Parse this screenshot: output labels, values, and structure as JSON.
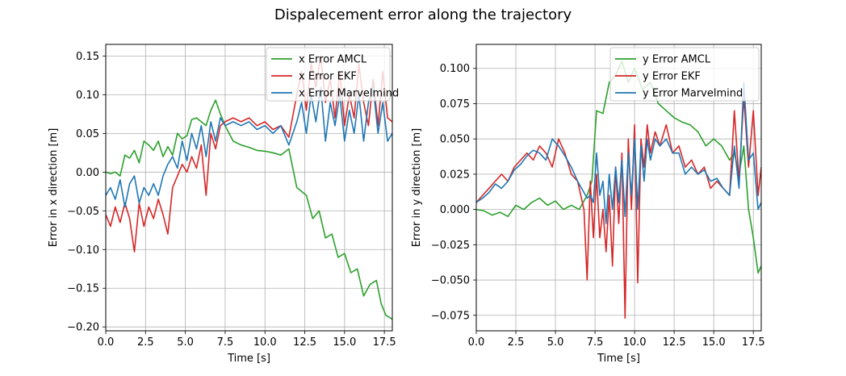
{
  "figure_title": "Dispalecement error along the trajectory",
  "colors": {
    "green": "#2ca02c",
    "red": "#d62728",
    "blue": "#1f77b4",
    "grid": "#b0b0b0"
  },
  "chart_data": [
    {
      "type": "line",
      "xlabel": "Time [s]",
      "ylabel": "Error in x direction [m]",
      "xlim": [
        0,
        18
      ],
      "ylim": [
        -0.205,
        0.165
      ],
      "xticks": [
        0,
        2.5,
        5,
        7.5,
        10,
        12.5,
        15,
        17.5
      ],
      "xtick_labels": [
        "0.0",
        "2.5",
        "5.0",
        "7.5",
        "10.0",
        "12.5",
        "15.0",
        "17.5"
      ],
      "yticks": [
        -0.2,
        -0.15,
        -0.1,
        -0.05,
        0,
        0.05,
        0.1,
        0.15
      ],
      "ytick_labels": [
        "−0.20",
        "−0.15",
        "−0.10",
        "−0.05",
        "0.00",
        "0.05",
        "0.10",
        "0.15"
      ],
      "grid": true,
      "legend_position": "top-right",
      "series": [
        {
          "name": "x Error AMCL",
          "color": "#2ca02c",
          "x": [
            0,
            0.3,
            0.6,
            0.9,
            1.2,
            1.5,
            1.8,
            2.1,
            2.4,
            2.7,
            3.0,
            3.3,
            3.6,
            3.9,
            4.2,
            4.5,
            4.8,
            5.1,
            5.4,
            5.7,
            6.0,
            6.3,
            6.6,
            6.9,
            7.2,
            7.5,
            8.0,
            8.5,
            9.0,
            9.5,
            10.0,
            10.5,
            11.0,
            11.5,
            12.0,
            12.3,
            12.6,
            13.0,
            13.4,
            13.8,
            14.2,
            14.6,
            15.0,
            15.4,
            15.8,
            16.2,
            16.6,
            17.0,
            17.3,
            17.6,
            18.0
          ],
          "y": [
            0.0,
            -0.002,
            0.0,
            -0.005,
            0.022,
            0.018,
            0.028,
            0.012,
            0.04,
            0.035,
            0.028,
            0.04,
            0.02,
            0.033,
            0.022,
            0.05,
            0.043,
            0.047,
            0.068,
            0.07,
            0.065,
            0.06,
            0.08,
            0.093,
            0.075,
            0.06,
            0.04,
            0.035,
            0.032,
            0.028,
            0.027,
            0.025,
            0.022,
            0.03,
            -0.02,
            -0.025,
            -0.03,
            -0.06,
            -0.05,
            -0.085,
            -0.08,
            -0.11,
            -0.105,
            -0.13,
            -0.125,
            -0.16,
            -0.145,
            -0.14,
            -0.17,
            -0.185,
            -0.19
          ]
        },
        {
          "name": "x Error EKF",
          "color": "#d62728",
          "x": [
            0,
            0.3,
            0.6,
            0.9,
            1.2,
            1.5,
            1.8,
            2.1,
            2.4,
            2.7,
            3.0,
            3.3,
            3.6,
            3.9,
            4.2,
            4.5,
            4.8,
            5.1,
            5.4,
            5.7,
            6.0,
            6.3,
            6.6,
            6.9,
            7.2,
            7.5,
            8.0,
            8.5,
            9.0,
            9.5,
            10.0,
            10.5,
            11.0,
            11.5,
            12.0,
            12.3,
            12.6,
            12.9,
            13.2,
            13.5,
            13.8,
            14.1,
            14.4,
            14.7,
            15.0,
            15.3,
            15.6,
            15.9,
            16.2,
            16.5,
            16.8,
            17.1,
            17.4,
            17.7,
            18.0
          ],
          "y": [
            -0.055,
            -0.07,
            -0.045,
            -0.065,
            -0.04,
            -0.06,
            -0.103,
            -0.04,
            -0.07,
            -0.045,
            -0.06,
            -0.035,
            -0.055,
            -0.08,
            -0.02,
            -0.005,
            0.01,
            0.0,
            0.02,
            0.005,
            0.035,
            -0.03,
            0.05,
            0.03,
            0.06,
            0.065,
            0.07,
            0.065,
            0.07,
            0.06,
            0.065,
            0.055,
            0.06,
            0.045,
            0.1,
            0.13,
            0.08,
            0.14,
            0.11,
            0.15,
            0.09,
            0.12,
            0.07,
            0.13,
            0.06,
            0.1,
            0.07,
            0.14,
            0.09,
            0.06,
            0.12,
            0.06,
            0.13,
            0.07,
            0.065
          ]
        },
        {
          "name": "x Error Marvelmind",
          "color": "#1f77b4",
          "x": [
            0,
            0.3,
            0.6,
            0.9,
            1.2,
            1.5,
            1.8,
            2.1,
            2.4,
            2.7,
            3.0,
            3.3,
            3.6,
            3.9,
            4.2,
            4.5,
            4.8,
            5.1,
            5.4,
            5.7,
            6.0,
            6.3,
            6.6,
            6.9,
            7.2,
            7.5,
            8.0,
            8.5,
            9.0,
            9.5,
            10.0,
            10.5,
            11.0,
            11.5,
            12.0,
            12.3,
            12.6,
            12.9,
            13.2,
            13.5,
            13.8,
            14.1,
            14.4,
            14.7,
            15.0,
            15.3,
            15.6,
            15.9,
            16.2,
            16.5,
            16.8,
            17.1,
            17.4,
            17.7,
            18.0
          ],
          "y": [
            -0.03,
            -0.02,
            -0.035,
            -0.01,
            -0.045,
            -0.015,
            -0.005,
            -0.04,
            -0.02,
            -0.03,
            -0.015,
            -0.03,
            -0.005,
            0.01,
            0.02,
            0.005,
            0.04,
            0.015,
            0.05,
            0.03,
            0.06,
            0.02,
            0.065,
            0.04,
            0.07,
            0.06,
            0.065,
            0.06,
            0.065,
            0.055,
            0.06,
            0.05,
            0.06,
            0.035,
            0.065,
            0.09,
            0.05,
            0.1,
            0.065,
            0.11,
            0.04,
            0.09,
            0.06,
            0.1,
            0.04,
            0.08,
            0.05,
            0.1,
            0.04,
            0.09,
            0.11,
            0.05,
            0.09,
            0.04,
            0.05
          ]
        }
      ]
    },
    {
      "type": "line",
      "xlabel": "Time [s]",
      "ylabel": "Error in y direction [m]",
      "xlim": [
        0,
        18
      ],
      "ylim": [
        -0.086,
        0.117
      ],
      "xticks": [
        0,
        2.5,
        5,
        7.5,
        10,
        12.5,
        15,
        17.5
      ],
      "xtick_labels": [
        "0.0",
        "2.5",
        "5.0",
        "7.5",
        "10.0",
        "12.5",
        "15.0",
        "17.5"
      ],
      "yticks": [
        -0.075,
        -0.05,
        -0.025,
        0,
        0.025,
        0.05,
        0.075,
        0.1
      ],
      "ytick_labels": [
        "−0.075",
        "−0.050",
        "−0.025",
        "0.000",
        "0.025",
        "0.050",
        "0.075",
        "0.100"
      ],
      "grid": true,
      "legend_position": "top-right",
      "series": [
        {
          "name": "y Error AMCL",
          "color": "#2ca02c",
          "x": [
            0,
            0.5,
            1.0,
            1.5,
            2.0,
            2.5,
            3.0,
            3.5,
            4.0,
            4.5,
            5.0,
            5.5,
            6.0,
            6.5,
            7.0,
            7.3,
            7.6,
            8.0,
            8.4,
            8.8,
            9.2,
            9.6,
            10.0,
            10.5,
            11.0,
            11.5,
            12.0,
            12.5,
            13.0,
            13.5,
            14.0,
            14.5,
            15.0,
            15.5,
            16.0,
            16.3,
            16.6,
            16.9,
            17.2,
            17.5,
            17.8,
            18.0
          ],
          "y": [
            0.0,
            -0.001,
            -0.004,
            -0.002,
            -0.005,
            0.003,
            0.0,
            0.005,
            0.008,
            0.003,
            0.006,
            0.0,
            0.003,
            0.0,
            0.01,
            0.02,
            0.07,
            0.068,
            0.09,
            0.095,
            0.105,
            0.09,
            0.1,
            0.085,
            0.09,
            0.075,
            0.07,
            0.065,
            0.062,
            0.06,
            0.055,
            0.045,
            0.05,
            0.045,
            0.035,
            0.04,
            0.025,
            0.045,
            0.0,
            -0.02,
            -0.045,
            -0.04
          ]
        },
        {
          "name": "y Error EKF",
          "color": "#d62728",
          "x": [
            0,
            0.4,
            0.8,
            1.2,
            1.6,
            2.0,
            2.4,
            2.8,
            3.2,
            3.6,
            4.0,
            4.4,
            4.8,
            5.2,
            5.6,
            6.0,
            6.4,
            6.8,
            7.0,
            7.2,
            7.4,
            7.6,
            7.8,
            8.0,
            8.2,
            8.4,
            8.6,
            8.8,
            9.0,
            9.2,
            9.4,
            9.6,
            9.8,
            10.0,
            10.2,
            10.4,
            10.6,
            10.8,
            11.0,
            11.3,
            11.6,
            12.0,
            12.4,
            12.8,
            13.2,
            13.6,
            14.0,
            14.4,
            14.8,
            15.2,
            15.6,
            16.0,
            16.3,
            16.6,
            16.9,
            17.2,
            17.5,
            17.8,
            18.0
          ],
          "y": [
            0.005,
            0.01,
            0.015,
            0.02,
            0.025,
            0.02,
            0.03,
            0.035,
            0.04,
            0.035,
            0.045,
            0.04,
            0.03,
            0.05,
            0.04,
            0.025,
            0.02,
            0.0,
            -0.05,
            0.02,
            -0.02,
            0.025,
            -0.02,
            0.0,
            -0.03,
            0.01,
            -0.04,
            0.03,
            -0.01,
            0.04,
            -0.077,
            0.05,
            0.0,
            0.06,
            -0.052,
            0.05,
            0.03,
            0.06,
            0.04,
            0.055,
            0.045,
            0.06,
            0.04,
            0.045,
            0.03,
            0.035,
            0.025,
            0.03,
            0.015,
            0.02,
            0.015,
            0.01,
            0.07,
            0.02,
            0.08,
            0.03,
            0.07,
            0.01,
            0.03
          ]
        },
        {
          "name": "y Error Marvelmind",
          "color": "#1f77b4",
          "x": [
            0,
            0.4,
            0.8,
            1.2,
            1.6,
            2.0,
            2.4,
            2.8,
            3.2,
            3.6,
            4.0,
            4.4,
            4.8,
            5.2,
            5.6,
            6.0,
            6.4,
            6.8,
            7.0,
            7.2,
            7.4,
            7.6,
            7.8,
            8.0,
            8.2,
            8.4,
            8.6,
            8.8,
            9.0,
            9.2,
            9.4,
            9.6,
            9.8,
            10.0,
            10.2,
            10.4,
            10.6,
            10.8,
            11.0,
            11.3,
            11.6,
            12.0,
            12.4,
            12.8,
            13.2,
            13.6,
            14.0,
            14.4,
            14.8,
            15.2,
            15.6,
            16.0,
            16.3,
            16.6,
            16.9,
            17.2,
            17.5,
            17.8,
            18.0
          ],
          "y": [
            0.005,
            0.008,
            0.012,
            0.018,
            0.015,
            0.02,
            0.028,
            0.032,
            0.038,
            0.042,
            0.04,
            0.035,
            0.05,
            0.045,
            0.038,
            0.03,
            0.02,
            0.012,
            0.008,
            0.01,
            0.005,
            0.04,
            0.01,
            0.02,
            -0.01,
            0.025,
            0.0,
            0.03,
            0.005,
            0.035,
            -0.005,
            0.04,
            0.01,
            0.05,
            0.0,
            0.045,
            0.02,
            0.05,
            0.035,
            0.05,
            0.045,
            0.05,
            0.04,
            0.04,
            0.025,
            0.03,
            0.025,
            0.028,
            0.02,
            0.022,
            0.015,
            0.01,
            0.045,
            0.015,
            0.09,
            0.035,
            0.04,
            0.0,
            0.005
          ]
        }
      ]
    }
  ]
}
